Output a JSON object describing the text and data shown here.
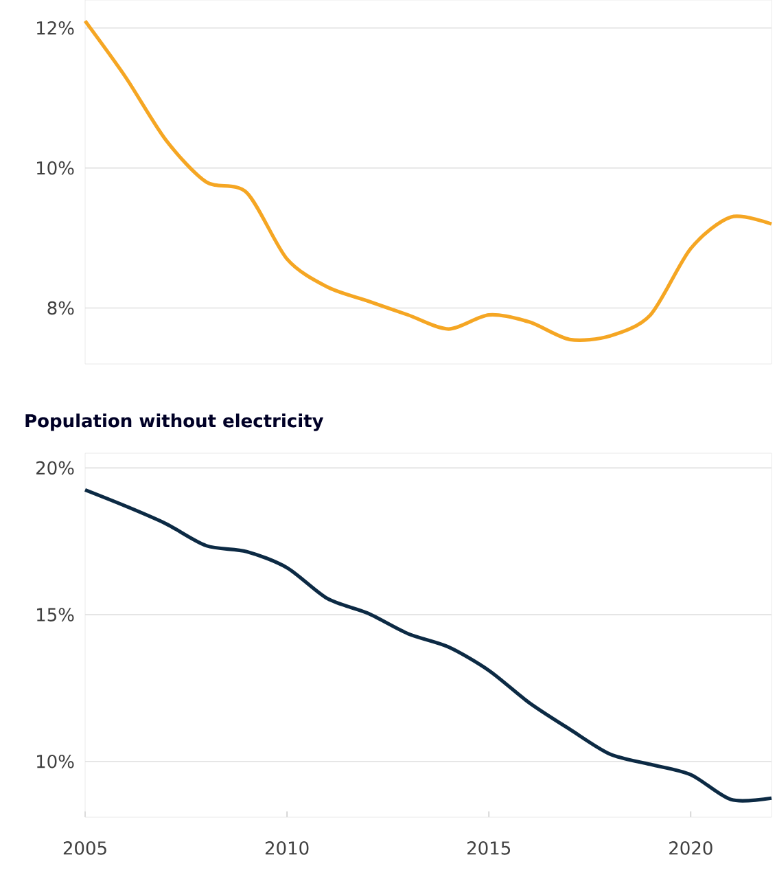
{
  "chart_data": [
    {
      "type": "line",
      "x": [
        2005,
        2006,
        2007,
        2008,
        2009,
        2010,
        2011,
        2012,
        2013,
        2014,
        2015,
        2016,
        2017,
        2018,
        2019,
        2020,
        2021,
        2022
      ],
      "series": [
        {
          "color": "#f5a623",
          "values": [
            12.1,
            11.3,
            10.4,
            9.8,
            9.65,
            8.7,
            8.3,
            8.1,
            7.9,
            7.7,
            7.9,
            7.8,
            7.55,
            7.6,
            7.9,
            8.85,
            9.3,
            9.2
          ]
        }
      ],
      "xlim": [
        2005,
        2022
      ],
      "ylim": [
        7.2,
        12.4
      ],
      "yticks": [
        {
          "value": 8,
          "label": "8%"
        },
        {
          "value": 10,
          "label": "10%"
        },
        {
          "value": 12,
          "label": "12%"
        }
      ],
      "grid": "y",
      "tick_labels": "y"
    },
    {
      "type": "line",
      "title": "Population without electricity",
      "x": [
        2005,
        2006,
        2007,
        2008,
        2009,
        2010,
        2011,
        2012,
        2013,
        2014,
        2015,
        2016,
        2017,
        2018,
        2019,
        2020,
        2021,
        2022
      ],
      "series": [
        {
          "color": "#0c2a44",
          "values": [
            19.25,
            18.7,
            18.1,
            17.35,
            17.15,
            16.6,
            15.55,
            15.05,
            14.35,
            13.9,
            13.1,
            12.0,
            11.1,
            10.25,
            9.9,
            9.55,
            8.7,
            8.75
          ]
        }
      ],
      "xlim": [
        2005,
        2022
      ],
      "ylim": [
        8.1,
        20.5
      ],
      "xticks": [
        2005,
        2010,
        2015,
        2020
      ],
      "yticks": [
        {
          "value": 10,
          "label": "10%"
        },
        {
          "value": 15,
          "label": "15%"
        },
        {
          "value": 20,
          "label": "20%"
        }
      ],
      "grid": "y"
    }
  ]
}
